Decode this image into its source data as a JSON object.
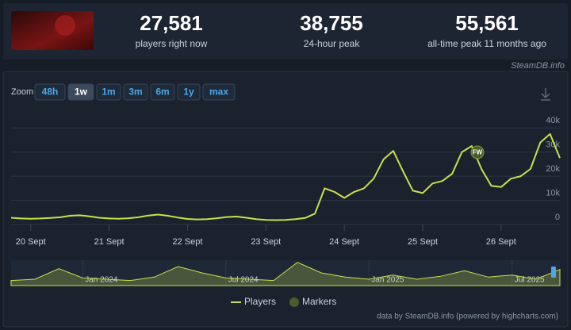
{
  "header": {
    "stats": [
      {
        "value": "27,581",
        "label": "players right now"
      },
      {
        "value": "38,755",
        "label": "24-hour peak"
      },
      {
        "value": "55,561",
        "label": "all-time peak 11 months ago"
      }
    ],
    "source": "SteamDB.info"
  },
  "chart_data": {
    "type": "line",
    "zoom_label": "Zoom",
    "zoom_options": [
      "48h",
      "1w",
      "1m",
      "3m",
      "6m",
      "1y",
      "max"
    ],
    "zoom_active": "1w",
    "categories": [
      null,
      null,
      "20 Sept",
      null,
      null,
      null,
      null,
      null,
      null,
      null,
      "21 Sept",
      null,
      null,
      null,
      null,
      null,
      null,
      null,
      "22 Sept",
      null,
      null,
      null,
      null,
      null,
      null,
      null,
      "23 Sept",
      null,
      null,
      null,
      null,
      null,
      null,
      null,
      "24 Sept",
      null,
      null,
      null,
      null,
      null,
      null,
      null,
      "25 Sept",
      null,
      null,
      null,
      null,
      null,
      null,
      null,
      "26 Sept",
      null,
      null,
      null,
      null,
      null,
      null
    ],
    "series": [
      {
        "name": "Players",
        "color": "#c9e04c",
        "values": [
          2800,
          2500,
          2400,
          2500,
          2700,
          3000,
          3600,
          3800,
          3400,
          2800,
          2500,
          2400,
          2600,
          3000,
          3700,
          4100,
          3600,
          2900,
          2300,
          2100,
          2200,
          2600,
          3100,
          3300,
          2800,
          2200,
          1900,
          1800,
          1900,
          2200,
          2700,
          4500,
          15000,
          13500,
          11000,
          13500,
          15000,
          19000,
          27000,
          30500,
          22000,
          14000,
          13000,
          17000,
          18000,
          21000,
          30000,
          32500,
          23000,
          16000,
          15500,
          19000,
          20000,
          23000,
          34000,
          37500,
          27500
        ]
      }
    ],
    "ylim": [
      0,
      47000
    ],
    "yticks": [
      0,
      {
        "value": 10000,
        "label": "10k"
      },
      {
        "value": 20000,
        "label": "20k"
      },
      {
        "value": 30000,
        "label": "30k"
      },
      {
        "value": 40000,
        "label": "40k"
      }
    ],
    "grid": true,
    "marker": {
      "name": "Markers",
      "label": "FW",
      "color": "#4b5b2a"
    },
    "navigator": {
      "categories": [
        null,
        null,
        null,
        "Jan 2024",
        null,
        null,
        null,
        null,
        null,
        "Jul 2024",
        null,
        null,
        null,
        null,
        null,
        "Jan 2025",
        null,
        null,
        null,
        null,
        null,
        "Jul 2025",
        null,
        null
      ],
      "values": [
        12000,
        15000,
        40000,
        18000,
        15000,
        12000,
        20000,
        45000,
        30000,
        18000,
        15000,
        12000,
        55000,
        30000,
        20000,
        15000,
        25000,
        15000,
        22000,
        35000,
        20000,
        25000,
        15000,
        38000
      ],
      "ylim": [
        0,
        60000
      ]
    },
    "credits": "data by SteamDB.info (powered by highcharts.com)"
  }
}
